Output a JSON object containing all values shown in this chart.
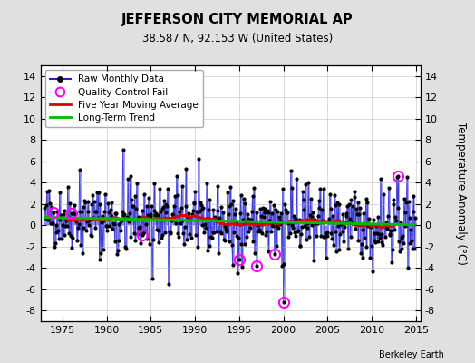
{
  "title": "JEFFERSON CITY MEMORIAL AP",
  "subtitle": "38.587 N, 92.153 W (United States)",
  "ylabel": "Temperature Anomaly (°C)",
  "xlabel_years": [
    1975,
    1980,
    1985,
    1990,
    1995,
    2000,
    2005,
    2010,
    2015
  ],
  "yticks": [
    -8,
    -6,
    -4,
    -2,
    0,
    2,
    4,
    6,
    8,
    10,
    12,
    14
  ],
  "ylim": [
    -9,
    15
  ],
  "xlim": [
    1972.5,
    2015.5
  ],
  "bg_color": "#e0e0e0",
  "plot_bg_color": "#ffffff",
  "line_color": "#2222cc",
  "stem_color": "#8888ee",
  "ma_color": "#dd0000",
  "trend_color": "#00bb00",
  "qc_color": "#ff00ff",
  "grid_color": "#cccccc",
  "seed": 42,
  "start_year": 1973,
  "end_year": 2014,
  "credit": "Berkeley Earth"
}
